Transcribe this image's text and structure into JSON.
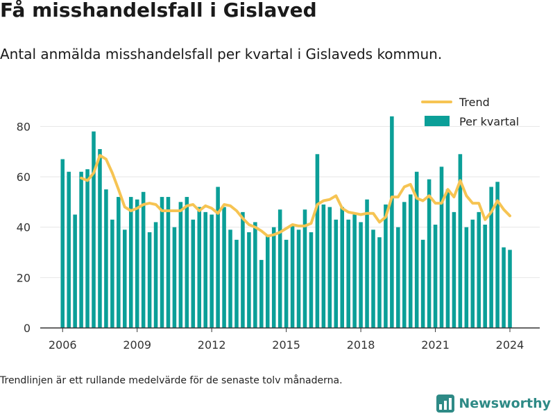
{
  "title": "Få misshandelsfall i Gislaved",
  "subtitle": "Antal anmälda misshandelsfall per kvartal i Gislaveds kommun.",
  "footnote": "Trendlinjen är ett rullande medelvärde för de senaste tolv månaderna.",
  "brand": {
    "name": "Newsworthy",
    "icon": "newsworthy-logo-icon",
    "color": "#2e8a86"
  },
  "colors": {
    "bars": "#0b9f98",
    "trend": "#f6c453",
    "grid": "#e6e6e6",
    "axis": "#333333"
  },
  "chart_data": {
    "type": "bar",
    "title": "",
    "xlabel": "",
    "ylabel": "",
    "ylim": [
      0,
      90
    ],
    "yticks": [
      0,
      20,
      40,
      60,
      80
    ],
    "xlim": [
      2005.1,
      2025.2
    ],
    "xticks": [
      "2006",
      "2009",
      "2012",
      "2015",
      "2018",
      "2021",
      "2024"
    ],
    "grid": true,
    "legend_position": "top-right",
    "x": [
      2006.0,
      2006.25,
      2006.5,
      2006.75,
      2007.0,
      2007.25,
      2007.5,
      2007.75,
      2008.0,
      2008.25,
      2008.5,
      2008.75,
      2009.0,
      2009.25,
      2009.5,
      2009.75,
      2010.0,
      2010.25,
      2010.5,
      2010.75,
      2011.0,
      2011.25,
      2011.5,
      2011.75,
      2012.0,
      2012.25,
      2012.5,
      2012.75,
      2013.0,
      2013.25,
      2013.5,
      2013.75,
      2014.0,
      2014.25,
      2014.5,
      2014.75,
      2015.0,
      2015.25,
      2015.5,
      2015.75,
      2016.0,
      2016.25,
      2016.5,
      2016.75,
      2017.0,
      2017.25,
      2017.5,
      2017.75,
      2018.0,
      2018.25,
      2018.5,
      2018.75,
      2019.0,
      2019.25,
      2019.5,
      2019.75,
      2020.0,
      2020.25,
      2020.5,
      2020.75,
      2021.0,
      2021.25,
      2021.5,
      2021.75,
      2022.0,
      2022.25,
      2022.5,
      2022.75,
      2023.0,
      2023.25,
      2023.5,
      2023.75,
      2024.0
    ],
    "series": [
      {
        "name": "Per kvartal",
        "kind": "bar",
        "values": [
          67,
          62,
          45,
          62,
          63,
          78,
          71,
          55,
          43,
          52,
          39,
          52,
          51,
          54,
          38,
          42,
          52,
          52,
          40,
          50,
          52,
          43,
          48,
          46,
          45,
          56,
          48,
          39,
          35,
          46,
          38,
          42,
          27,
          37,
          40,
          47,
          35,
          41,
          39,
          47,
          38,
          69,
          49,
          48,
          43,
          48,
          43,
          45,
          42,
          51,
          39,
          36,
          49,
          84,
          40,
          50,
          53,
          62,
          35,
          59,
          41,
          64,
          55,
          46,
          69,
          40,
          43,
          46,
          41,
          56,
          58,
          32,
          31
        ]
      },
      {
        "name": "Trend",
        "kind": "line",
        "values": [
          null,
          null,
          null,
          59.5,
          58.5,
          61.5,
          68.5,
          67,
          61.5,
          55,
          48,
          46.5,
          47.5,
          49,
          49.5,
          49,
          46.5,
          46.5,
          46.5,
          46.5,
          48.5,
          49,
          46.5,
          48.5,
          47.5,
          45.5,
          49,
          48.5,
          46.5,
          43.5,
          41,
          40,
          38.5,
          36.5,
          37,
          38,
          39.5,
          41,
          40.5,
          40.5,
          41.5,
          49,
          50.5,
          51,
          52.5,
          47.5,
          46,
          45.5,
          45,
          45.5,
          45.5,
          42,
          44,
          52,
          52,
          56,
          57,
          51.5,
          50.5,
          52.5,
          49.5,
          49.5,
          55,
          52,
          58.5,
          52.5,
          49.5,
          49.5,
          43,
          46,
          50.5,
          47,
          44.5
        ]
      }
    ]
  }
}
